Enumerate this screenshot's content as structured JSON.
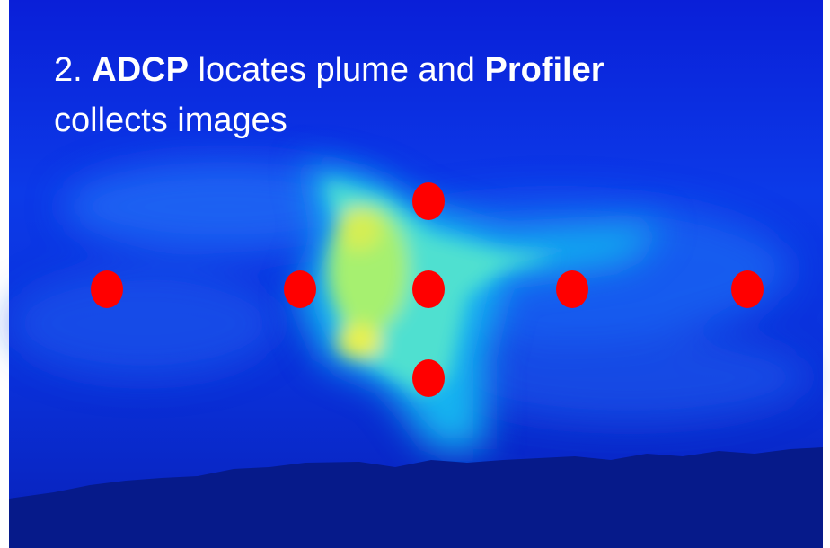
{
  "title": {
    "parts": [
      {
        "text": "2.",
        "bold": false
      },
      {
        "text": "ADCP",
        "bold": true
      },
      {
        "text": "locates plume and",
        "bold": false
      },
      {
        "text": "Profiler",
        "bold": true
      },
      {
        "text": "collects images",
        "bold": false
      }
    ]
  }
}
